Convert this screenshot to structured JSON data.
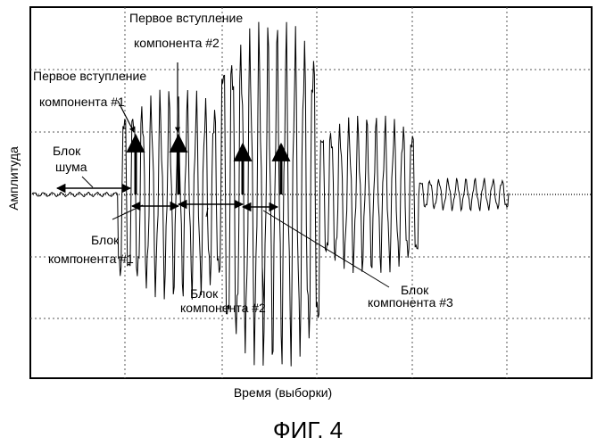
{
  "figure_caption": "ФИГ. 4",
  "chart_data": {
    "type": "line",
    "title": "",
    "xlabel": "Время (выборки)",
    "ylabel": "Амплитуда",
    "grid": true,
    "legend": "none",
    "series": [
      {
        "samples_per_cycle": 10,
        "segments": [
          {
            "from": 0,
            "to": 95,
            "peak": 0.03
          },
          {
            "from": 95,
            "to": 210,
            "peak": 1.4
          },
          {
            "from": 210,
            "to": 320,
            "peak": 2.3
          },
          {
            "from": 320,
            "to": 430,
            "peak": 1.05
          },
          {
            "from": 430,
            "to": 530,
            "peak": 0.22
          }
        ]
      }
    ],
    "annotations": {
      "first_arrival_1": {
        "line1": "Первое вступление",
        "line2": "компонента #1"
      },
      "first_arrival_2": {
        "line1": "Первое вступление",
        "line2": "компонента #2"
      },
      "noise_block": {
        "line1": "Блок",
        "line2": "шума"
      },
      "component_block_1": {
        "line1": "Блок",
        "line2": "компонента  #1"
      },
      "component_block_2": {
        "line1": "Блок",
        "line2": "компонента #2"
      },
      "component_block_3": {
        "line1": "Блок",
        "line2": "компонента #3"
      }
    }
  }
}
